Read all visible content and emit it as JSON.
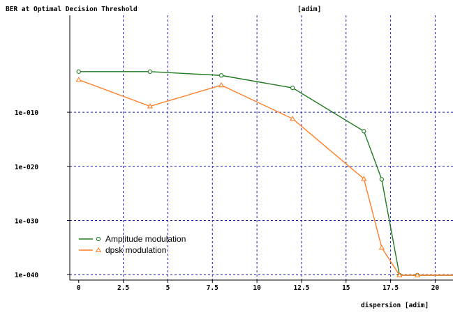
{
  "chart_data": {
    "type": "line",
    "title": "BER at Optimal Decision Threshold",
    "y_unit": "[adim]",
    "xlabel": "dispersion [adim]",
    "ylabel": "",
    "y_scale": "log",
    "xlim": [
      -0.5,
      21
    ],
    "ylim_exponent": [
      -41,
      7.9
    ],
    "x_ticks": [
      0,
      2.5,
      5,
      7.5,
      10,
      12.5,
      15,
      17.5,
      20
    ],
    "x_tick_labels": [
      "0",
      "2.5",
      "5",
      "7.5",
      "10",
      "12.5",
      "15",
      "17.5",
      "20"
    ],
    "y_ticks_exponent": [
      -10,
      -20,
      -30,
      -40
    ],
    "y_tick_labels": [
      "1e-010",
      "1e-020",
      "1e-030",
      "1e-040"
    ],
    "grid": true,
    "legend_position": "lower-left",
    "series": [
      {
        "name": "Amplitude modulation",
        "color": "#1f7a1f",
        "marker": "circle",
        "x": [
          0,
          4,
          8,
          12,
          16,
          17,
          18,
          19,
          21
        ],
        "log10_y": [
          -2.5,
          -2.5,
          -3.2,
          -5.5,
          -13.5,
          -22.4,
          -40.1,
          -40.1,
          -40.1
        ]
      },
      {
        "name": "dpsk modulation",
        "color": "#ff7f27",
        "marker": "triangle",
        "x": [
          0,
          4,
          8,
          12,
          16,
          17,
          18,
          19,
          21
        ],
        "log10_y": [
          -4.0,
          -8.9,
          -5.0,
          -11.2,
          -22.3,
          -35.0,
          -40.1,
          -40.1,
          -40.1
        ]
      }
    ]
  }
}
